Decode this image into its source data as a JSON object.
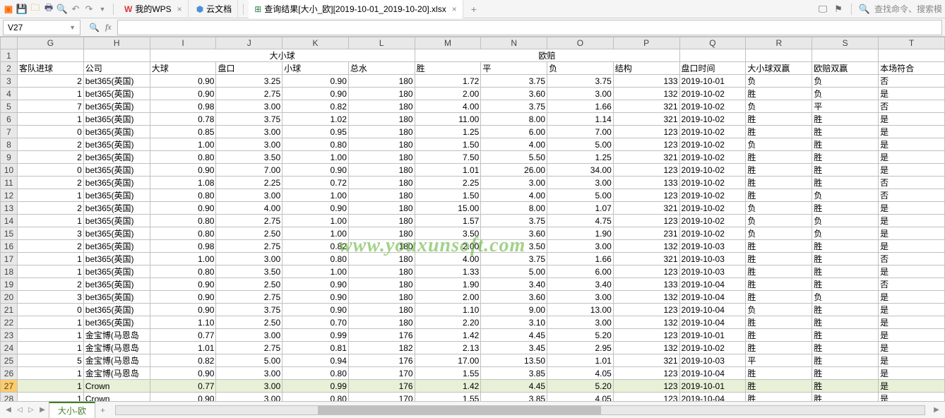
{
  "toolbar": {
    "tab1": "我的WPS",
    "tab2": "云文档",
    "tab3": "查询结果[大小_欧][2019-10-01_2019-10-20].xlsx",
    "search_placeholder": "查找命令、搜索模"
  },
  "formula_bar": {
    "name_box": "V27",
    "fx": "fx"
  },
  "columns": [
    "G",
    "H",
    "I",
    "J",
    "K",
    "L",
    "M",
    "N",
    "O",
    "P",
    "Q",
    "R",
    "S",
    "T"
  ],
  "merged_headers": {
    "daxiaoqiu": "大小球",
    "oupei": "欧赔"
  },
  "headers": {
    "G": "客队进球",
    "H": "公司",
    "I": "大球",
    "J": "盘口",
    "K": "小球",
    "L": "总水",
    "M": "胜",
    "N": "平",
    "O": "负",
    "P": "结构",
    "Q": "盘口时间",
    "R": "大小球双赢",
    "S": "欧赔双赢",
    "T": "本场符合"
  },
  "rows": [
    {
      "n": 3,
      "G": "2",
      "H": "bet365(英国)",
      "I": "0.90",
      "J": "3.25",
      "K": "0.90",
      "L": "180",
      "M": "1.72",
      "N": "3.75",
      "O": "3.75",
      "P": "133",
      "Q": "2019-10-01",
      "R": "负",
      "S": "负",
      "T": "否"
    },
    {
      "n": 4,
      "G": "1",
      "H": "bet365(英国)",
      "I": "0.90",
      "J": "2.75",
      "K": "0.90",
      "L": "180",
      "M": "2.00",
      "N": "3.60",
      "O": "3.00",
      "P": "132",
      "Q": "2019-10-02",
      "R": "胜",
      "S": "负",
      "T": "是"
    },
    {
      "n": 5,
      "G": "7",
      "H": "bet365(英国)",
      "I": "0.98",
      "J": "3.00",
      "K": "0.82",
      "L": "180",
      "M": "4.00",
      "N": "3.75",
      "O": "1.66",
      "P": "321",
      "Q": "2019-10-02",
      "R": "负",
      "S": "平",
      "T": "否"
    },
    {
      "n": 6,
      "G": "1",
      "H": "bet365(英国)",
      "I": "0.78",
      "J": "3.75",
      "K": "1.02",
      "L": "180",
      "M": "11.00",
      "N": "8.00",
      "O": "1.14",
      "P": "321",
      "Q": "2019-10-02",
      "R": "胜",
      "S": "胜",
      "T": "是"
    },
    {
      "n": 7,
      "G": "0",
      "H": "bet365(英国)",
      "I": "0.85",
      "J": "3.00",
      "K": "0.95",
      "L": "180",
      "M": "1.25",
      "N": "6.00",
      "O": "7.00",
      "P": "123",
      "Q": "2019-10-02",
      "R": "胜",
      "S": "胜",
      "T": "是"
    },
    {
      "n": 8,
      "G": "2",
      "H": "bet365(英国)",
      "I": "1.00",
      "J": "3.00",
      "K": "0.80",
      "L": "180",
      "M": "1.50",
      "N": "4.00",
      "O": "5.00",
      "P": "123",
      "Q": "2019-10-02",
      "R": "负",
      "S": "胜",
      "T": "是"
    },
    {
      "n": 9,
      "G": "2",
      "H": "bet365(英国)",
      "I": "0.80",
      "J": "3.50",
      "K": "1.00",
      "L": "180",
      "M": "7.50",
      "N": "5.50",
      "O": "1.25",
      "P": "321",
      "Q": "2019-10-02",
      "R": "胜",
      "S": "胜",
      "T": "是"
    },
    {
      "n": 10,
      "G": "0",
      "H": "bet365(英国)",
      "I": "0.90",
      "J": "7.00",
      "K": "0.90",
      "L": "180",
      "M": "1.01",
      "N": "26.00",
      "O": "34.00",
      "P": "123",
      "Q": "2019-10-02",
      "R": "胜",
      "S": "胜",
      "T": "是"
    },
    {
      "n": 11,
      "G": "2",
      "H": "bet365(英国)",
      "I": "1.08",
      "J": "2.25",
      "K": "0.72",
      "L": "180",
      "M": "2.25",
      "N": "3.00",
      "O": "3.00",
      "P": "133",
      "Q": "2019-10-02",
      "R": "胜",
      "S": "胜",
      "T": "否"
    },
    {
      "n": 12,
      "G": "1",
      "H": "bet365(英国)",
      "I": "0.80",
      "J": "3.00",
      "K": "1.00",
      "L": "180",
      "M": "1.50",
      "N": "4.00",
      "O": "5.00",
      "P": "123",
      "Q": "2019-10-02",
      "R": "胜",
      "S": "负",
      "T": "否"
    },
    {
      "n": 13,
      "G": "2",
      "H": "bet365(英国)",
      "I": "0.90",
      "J": "4.00",
      "K": "0.90",
      "L": "180",
      "M": "15.00",
      "N": "8.00",
      "O": "1.07",
      "P": "321",
      "Q": "2019-10-02",
      "R": "负",
      "S": "胜",
      "T": "是"
    },
    {
      "n": 14,
      "G": "1",
      "H": "bet365(英国)",
      "I": "0.80",
      "J": "2.75",
      "K": "1.00",
      "L": "180",
      "M": "1.57",
      "N": "3.75",
      "O": "4.75",
      "P": "123",
      "Q": "2019-10-02",
      "R": "负",
      "S": "负",
      "T": "是"
    },
    {
      "n": 15,
      "G": "3",
      "H": "bet365(英国)",
      "I": "0.80",
      "J": "2.50",
      "K": "1.00",
      "L": "180",
      "M": "3.50",
      "N": "3.60",
      "O": "1.90",
      "P": "231",
      "Q": "2019-10-02",
      "R": "负",
      "S": "负",
      "T": "是"
    },
    {
      "n": 16,
      "G": "2",
      "H": "bet365(英国)",
      "I": "0.98",
      "J": "2.75",
      "K": "0.82",
      "L": "180",
      "M": "2.00",
      "N": "3.50",
      "O": "3.00",
      "P": "132",
      "Q": "2019-10-03",
      "R": "胜",
      "S": "胜",
      "T": "是"
    },
    {
      "n": 17,
      "G": "1",
      "H": "bet365(英国)",
      "I": "1.00",
      "J": "3.00",
      "K": "0.80",
      "L": "180",
      "M": "4.00",
      "N": "3.75",
      "O": "1.66",
      "P": "321",
      "Q": "2019-10-03",
      "R": "胜",
      "S": "胜",
      "T": "否"
    },
    {
      "n": 18,
      "G": "1",
      "H": "bet365(英国)",
      "I": "0.80",
      "J": "3.50",
      "K": "1.00",
      "L": "180",
      "M": "1.33",
      "N": "5.00",
      "O": "6.00",
      "P": "123",
      "Q": "2019-10-03",
      "R": "胜",
      "S": "胜",
      "T": "是"
    },
    {
      "n": 19,
      "G": "2",
      "H": "bet365(英国)",
      "I": "0.90",
      "J": "2.50",
      "K": "0.90",
      "L": "180",
      "M": "1.90",
      "N": "3.40",
      "O": "3.40",
      "P": "133",
      "Q": "2019-10-04",
      "R": "胜",
      "S": "胜",
      "T": "否"
    },
    {
      "n": 20,
      "G": "3",
      "H": "bet365(英国)",
      "I": "0.90",
      "J": "2.75",
      "K": "0.90",
      "L": "180",
      "M": "2.00",
      "N": "3.60",
      "O": "3.00",
      "P": "132",
      "Q": "2019-10-04",
      "R": "胜",
      "S": "负",
      "T": "是"
    },
    {
      "n": 21,
      "G": "0",
      "H": "bet365(英国)",
      "I": "0.90",
      "J": "3.75",
      "K": "0.90",
      "L": "180",
      "M": "1.10",
      "N": "9.00",
      "O": "13.00",
      "P": "123",
      "Q": "2019-10-04",
      "R": "负",
      "S": "胜",
      "T": "是"
    },
    {
      "n": 22,
      "G": "1",
      "H": "bet365(英国)",
      "I": "1.10",
      "J": "2.50",
      "K": "0.70",
      "L": "180",
      "M": "2.20",
      "N": "3.10",
      "O": "3.00",
      "P": "132",
      "Q": "2019-10-04",
      "R": "胜",
      "S": "胜",
      "T": "是"
    },
    {
      "n": 23,
      "G": "1",
      "H": "金宝博(马恩岛",
      "I": "0.77",
      "J": "3.00",
      "K": "0.99",
      "L": "176",
      "M": "1.42",
      "N": "4.45",
      "O": "5.20",
      "P": "123",
      "Q": "2019-10-01",
      "R": "胜",
      "S": "胜",
      "T": "是"
    },
    {
      "n": 24,
      "G": "1",
      "H": "金宝博(马恩岛",
      "I": "1.01",
      "J": "2.75",
      "K": "0.81",
      "L": "182",
      "M": "2.13",
      "N": "3.45",
      "O": "2.95",
      "P": "132",
      "Q": "2019-10-02",
      "R": "胜",
      "S": "胜",
      "T": "是"
    },
    {
      "n": 25,
      "G": "5",
      "H": "金宝博(马恩岛",
      "I": "0.82",
      "J": "5.00",
      "K": "0.94",
      "L": "176",
      "M": "17.00",
      "N": "13.50",
      "O": "1.01",
      "P": "321",
      "Q": "2019-10-03",
      "R": "平",
      "S": "胜",
      "T": "是"
    },
    {
      "n": 26,
      "G": "1",
      "H": "金宝博(马恩岛",
      "I": "0.90",
      "J": "3.00",
      "K": "0.80",
      "L": "170",
      "M": "1.55",
      "N": "3.85",
      "O": "4.05",
      "P": "123",
      "Q": "2019-10-04",
      "R": "胜",
      "S": "胜",
      "T": "是"
    },
    {
      "n": 27,
      "G": "1",
      "H": "Crown",
      "I": "0.77",
      "J": "3.00",
      "K": "0.99",
      "L": "176",
      "M": "1.42",
      "N": "4.45",
      "O": "5.20",
      "P": "123",
      "Q": "2019-10-01",
      "R": "胜",
      "S": "胜",
      "T": "是",
      "sel": true
    },
    {
      "n": 28,
      "G": "1",
      "H": "Crown",
      "I": "0.90",
      "J": "3.00",
      "K": "0.80",
      "L": "170",
      "M": "1.55",
      "N": "3.85",
      "O": "4.05",
      "P": "123",
      "Q": "2019-10-04",
      "R": "胜",
      "S": "胜",
      "T": "是"
    }
  ],
  "sheet_tab": "大小-欧",
  "watermark": "www.youxunsoft.com",
  "colors": {
    "grid_border": "#c0c0c0",
    "header_bg": "#e8e8e8",
    "toolbar_bg": "#f5f5f5",
    "wps_orange": "#ff6a00",
    "active_tab_green": "#417e2a",
    "row_select_bg": "#e8f0d8",
    "rowhdr_select_bg": "#ffcc66",
    "watermark_color": "rgba(100,180,60,0.6)"
  }
}
